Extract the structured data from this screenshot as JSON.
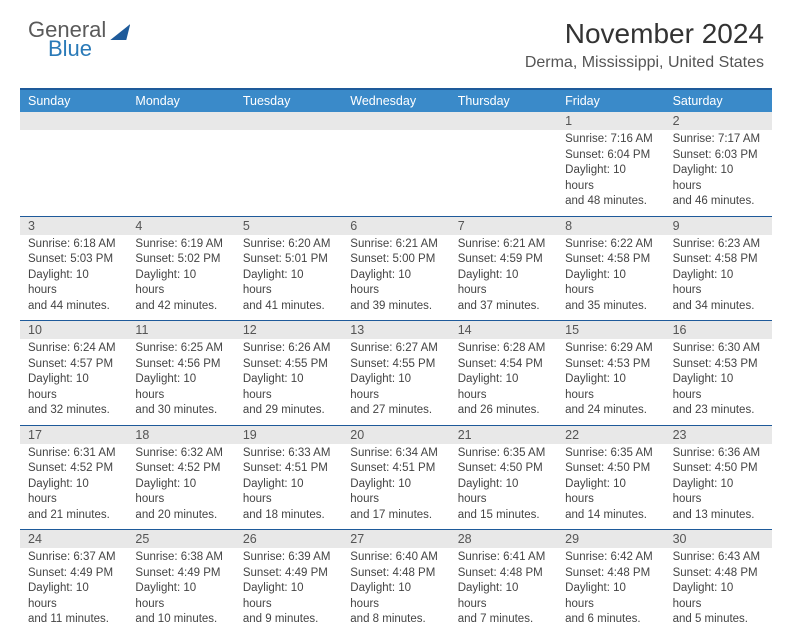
{
  "brand": {
    "part1": "General",
    "part2": "Blue"
  },
  "title": "November 2024",
  "location": "Derma, Mississippi, United States",
  "colors": {
    "header_bar": "#3a8ac9",
    "rule": "#1e5a9a",
    "daynum_bg": "#e8e8e8",
    "text": "#333333",
    "subtext": "#555555"
  },
  "fonts": {
    "base": "Arial",
    "title_size": 28,
    "location_size": 16,
    "dow_size": 12.5,
    "cell_size": 11.5
  },
  "dow": [
    "Sunday",
    "Monday",
    "Tuesday",
    "Wednesday",
    "Thursday",
    "Friday",
    "Saturday"
  ],
  "weeks": [
    [
      {
        "n": "",
        "lines": []
      },
      {
        "n": "",
        "lines": []
      },
      {
        "n": "",
        "lines": []
      },
      {
        "n": "",
        "lines": []
      },
      {
        "n": "",
        "lines": []
      },
      {
        "n": "1",
        "lines": [
          "Sunrise: 7:16 AM",
          "Sunset: 6:04 PM",
          "Daylight: 10 hours",
          "and 48 minutes."
        ]
      },
      {
        "n": "2",
        "lines": [
          "Sunrise: 7:17 AM",
          "Sunset: 6:03 PM",
          "Daylight: 10 hours",
          "and 46 minutes."
        ]
      }
    ],
    [
      {
        "n": "3",
        "lines": [
          "Sunrise: 6:18 AM",
          "Sunset: 5:03 PM",
          "Daylight: 10 hours",
          "and 44 minutes."
        ]
      },
      {
        "n": "4",
        "lines": [
          "Sunrise: 6:19 AM",
          "Sunset: 5:02 PM",
          "Daylight: 10 hours",
          "and 42 minutes."
        ]
      },
      {
        "n": "5",
        "lines": [
          "Sunrise: 6:20 AM",
          "Sunset: 5:01 PM",
          "Daylight: 10 hours",
          "and 41 minutes."
        ]
      },
      {
        "n": "6",
        "lines": [
          "Sunrise: 6:21 AM",
          "Sunset: 5:00 PM",
          "Daylight: 10 hours",
          "and 39 minutes."
        ]
      },
      {
        "n": "7",
        "lines": [
          "Sunrise: 6:21 AM",
          "Sunset: 4:59 PM",
          "Daylight: 10 hours",
          "and 37 minutes."
        ]
      },
      {
        "n": "8",
        "lines": [
          "Sunrise: 6:22 AM",
          "Sunset: 4:58 PM",
          "Daylight: 10 hours",
          "and 35 minutes."
        ]
      },
      {
        "n": "9",
        "lines": [
          "Sunrise: 6:23 AM",
          "Sunset: 4:58 PM",
          "Daylight: 10 hours",
          "and 34 minutes."
        ]
      }
    ],
    [
      {
        "n": "10",
        "lines": [
          "Sunrise: 6:24 AM",
          "Sunset: 4:57 PM",
          "Daylight: 10 hours",
          "and 32 minutes."
        ]
      },
      {
        "n": "11",
        "lines": [
          "Sunrise: 6:25 AM",
          "Sunset: 4:56 PM",
          "Daylight: 10 hours",
          "and 30 minutes."
        ]
      },
      {
        "n": "12",
        "lines": [
          "Sunrise: 6:26 AM",
          "Sunset: 4:55 PM",
          "Daylight: 10 hours",
          "and 29 minutes."
        ]
      },
      {
        "n": "13",
        "lines": [
          "Sunrise: 6:27 AM",
          "Sunset: 4:55 PM",
          "Daylight: 10 hours",
          "and 27 minutes."
        ]
      },
      {
        "n": "14",
        "lines": [
          "Sunrise: 6:28 AM",
          "Sunset: 4:54 PM",
          "Daylight: 10 hours",
          "and 26 minutes."
        ]
      },
      {
        "n": "15",
        "lines": [
          "Sunrise: 6:29 AM",
          "Sunset: 4:53 PM",
          "Daylight: 10 hours",
          "and 24 minutes."
        ]
      },
      {
        "n": "16",
        "lines": [
          "Sunrise: 6:30 AM",
          "Sunset: 4:53 PM",
          "Daylight: 10 hours",
          "and 23 minutes."
        ]
      }
    ],
    [
      {
        "n": "17",
        "lines": [
          "Sunrise: 6:31 AM",
          "Sunset: 4:52 PM",
          "Daylight: 10 hours",
          "and 21 minutes."
        ]
      },
      {
        "n": "18",
        "lines": [
          "Sunrise: 6:32 AM",
          "Sunset: 4:52 PM",
          "Daylight: 10 hours",
          "and 20 minutes."
        ]
      },
      {
        "n": "19",
        "lines": [
          "Sunrise: 6:33 AM",
          "Sunset: 4:51 PM",
          "Daylight: 10 hours",
          "and 18 minutes."
        ]
      },
      {
        "n": "20",
        "lines": [
          "Sunrise: 6:34 AM",
          "Sunset: 4:51 PM",
          "Daylight: 10 hours",
          "and 17 minutes."
        ]
      },
      {
        "n": "21",
        "lines": [
          "Sunrise: 6:35 AM",
          "Sunset: 4:50 PM",
          "Daylight: 10 hours",
          "and 15 minutes."
        ]
      },
      {
        "n": "22",
        "lines": [
          "Sunrise: 6:35 AM",
          "Sunset: 4:50 PM",
          "Daylight: 10 hours",
          "and 14 minutes."
        ]
      },
      {
        "n": "23",
        "lines": [
          "Sunrise: 6:36 AM",
          "Sunset: 4:50 PM",
          "Daylight: 10 hours",
          "and 13 minutes."
        ]
      }
    ],
    [
      {
        "n": "24",
        "lines": [
          "Sunrise: 6:37 AM",
          "Sunset: 4:49 PM",
          "Daylight: 10 hours",
          "and 11 minutes."
        ]
      },
      {
        "n": "25",
        "lines": [
          "Sunrise: 6:38 AM",
          "Sunset: 4:49 PM",
          "Daylight: 10 hours",
          "and 10 minutes."
        ]
      },
      {
        "n": "26",
        "lines": [
          "Sunrise: 6:39 AM",
          "Sunset: 4:49 PM",
          "Daylight: 10 hours",
          "and 9 minutes."
        ]
      },
      {
        "n": "27",
        "lines": [
          "Sunrise: 6:40 AM",
          "Sunset: 4:48 PM",
          "Daylight: 10 hours",
          "and 8 minutes."
        ]
      },
      {
        "n": "28",
        "lines": [
          "Sunrise: 6:41 AM",
          "Sunset: 4:48 PM",
          "Daylight: 10 hours",
          "and 7 minutes."
        ]
      },
      {
        "n": "29",
        "lines": [
          "Sunrise: 6:42 AM",
          "Sunset: 4:48 PM",
          "Daylight: 10 hours",
          "and 6 minutes."
        ]
      },
      {
        "n": "30",
        "lines": [
          "Sunrise: 6:43 AM",
          "Sunset: 4:48 PM",
          "Daylight: 10 hours",
          "and 5 minutes."
        ]
      }
    ]
  ]
}
